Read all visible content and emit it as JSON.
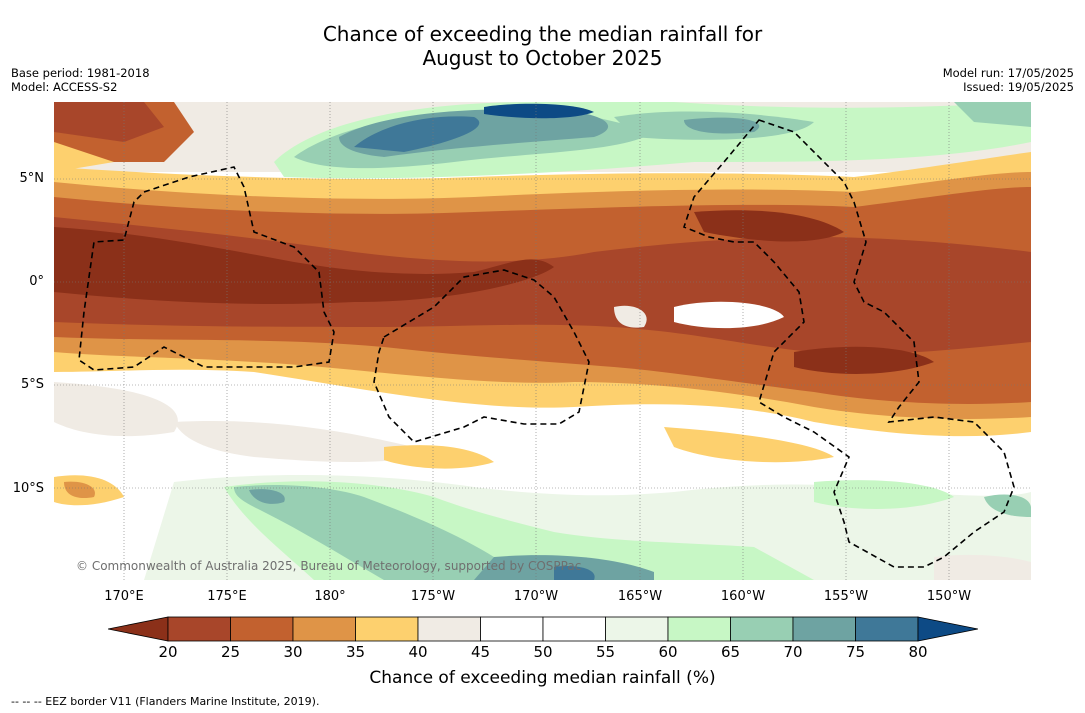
{
  "title_line1": "Chance of exceeding the median rainfall for",
  "title_line2": "August to October 2025",
  "meta": {
    "base_period": "Base period: 1981-2018",
    "model": "Model: ACCESS-S2",
    "model_run": "Model run: 17/05/2025",
    "issued": "Issued: 19/05/2025"
  },
  "lat_labels": [
    "5°N",
    "0°",
    "5°S",
    "10°S"
  ],
  "lon_labels": [
    "170°E",
    "175°E",
    "180°",
    "175°W",
    "170°W",
    "165°W",
    "160°W",
    "155°W",
    "150°W"
  ],
  "copyright": "© Commonwealth of Australia 2025, Bureau of Meteorology, supported by COSPPac",
  "colorbar": {
    "ticks": [
      "20",
      "25",
      "30",
      "35",
      "40",
      "45",
      "50",
      "55",
      "60",
      "65",
      "70",
      "75",
      "80"
    ],
    "colors": [
      "#8b3019",
      "#a8462a",
      "#c2612f",
      "#df9447",
      "#fdd06e",
      "#f0ebe4",
      "#ffffff",
      "#ffffff",
      "#ecf6e8",
      "#c7f7c5",
      "#98cfb3",
      "#6ea3a2",
      "#3f7898",
      "#0d4a85"
    ],
    "label": "Chance of exceeding median rainfall (%)"
  },
  "footnote": "--  --  -- EEZ border V11 (Flanders Marine Institute, 2019)."
}
